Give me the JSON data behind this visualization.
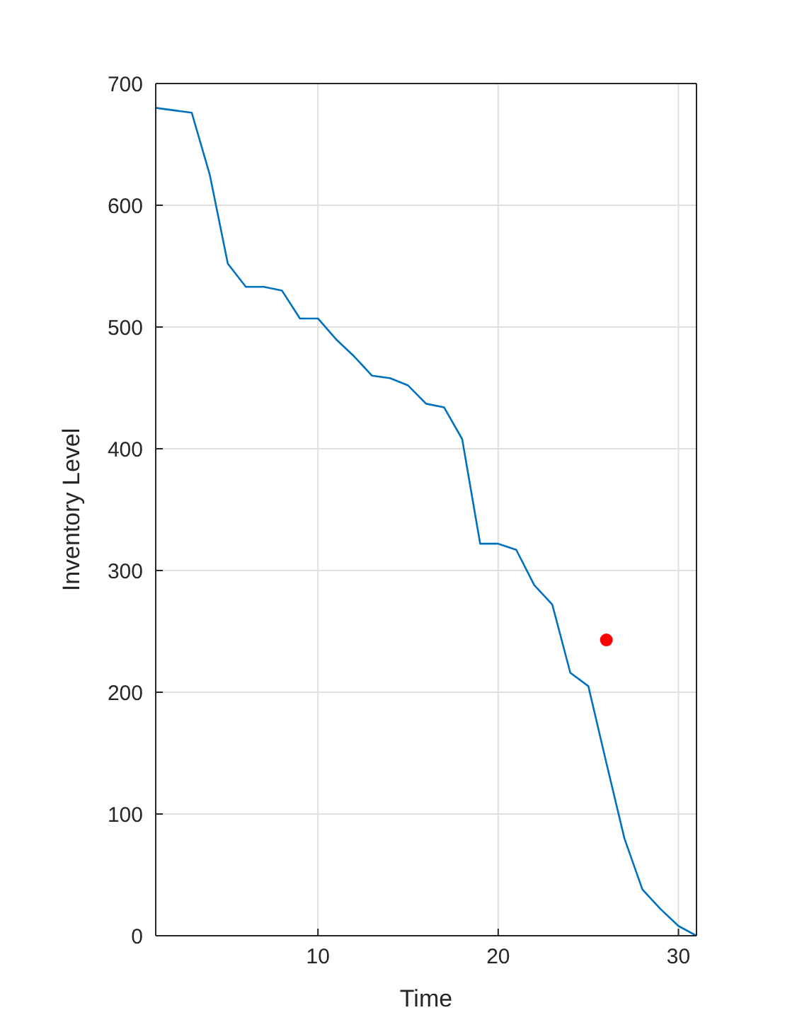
{
  "chart_data": {
    "type": "line",
    "xlabel": "Time",
    "ylabel": "Inventory Level",
    "xlim": [
      1,
      31
    ],
    "xticks": [
      10,
      20,
      30
    ],
    "ylim": [
      0,
      700
    ],
    "yticks": [
      0,
      100,
      200,
      300,
      400,
      500,
      600,
      700
    ],
    "grid": true,
    "legend": false,
    "series": [
      {
        "color": "#0072bd",
        "x": [
          1,
          2,
          3,
          4,
          5,
          6,
          7,
          8,
          9,
          10,
          11,
          12,
          13,
          14,
          15,
          16,
          17,
          18,
          19,
          20,
          21,
          22,
          23,
          24,
          25,
          26,
          27,
          28,
          29,
          30,
          31
        ],
        "values": [
          680,
          678,
          676,
          625,
          552,
          533,
          533,
          530,
          507,
          507,
          490,
          476,
          460,
          458,
          452,
          437,
          434,
          408,
          322,
          322,
          317,
          288,
          272,
          216,
          205,
          142,
          80,
          38,
          22,
          8,
          0
        ]
      },
      {
        "type": "scatter",
        "color": "#ff0000",
        "marker": "circle",
        "x": [
          26
        ],
        "values": [
          243
        ]
      }
    ]
  }
}
